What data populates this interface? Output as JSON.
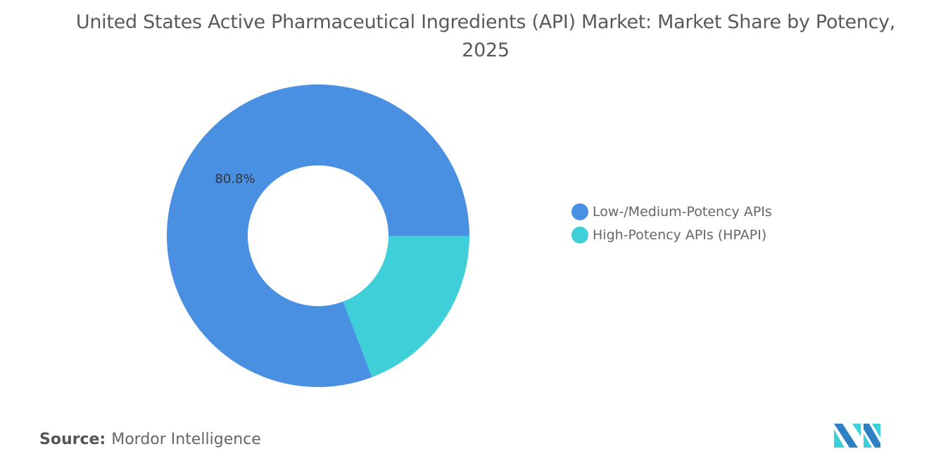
{
  "chart_data": {
    "type": "pie",
    "variant": "donut",
    "title": "United States Active Pharmaceutical Ingredients (API) Market: Market Share by Potency, 2025",
    "categories": [
      "Low-/Medium-Potency APIs",
      "High-Potency APIs (HPAPI)"
    ],
    "values": [
      80.8,
      19.2
    ],
    "unit": "%",
    "colors": [
      "#4a90e2",
      "#3ecfd8"
    ],
    "data_labels": [
      "80.8%",
      ""
    ],
    "legend_position": "right"
  },
  "source": {
    "label": "Source:",
    "value": "Mordor Intelligence"
  },
  "logo": {
    "name": "Mordor Intelligence logo",
    "colors": [
      "#2f7fc4",
      "#3ecfd8"
    ]
  }
}
